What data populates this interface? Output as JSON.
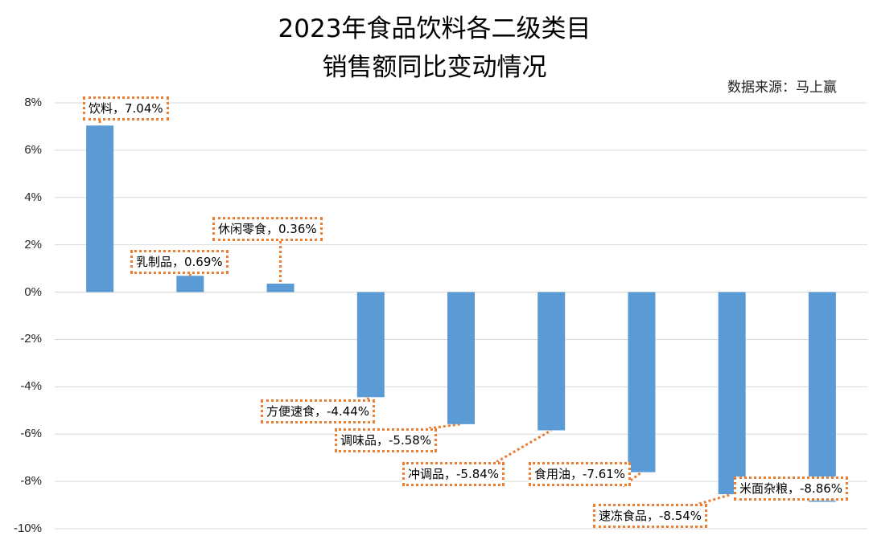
{
  "chart_data": {
    "type": "bar",
    "title": [
      "2023年食品饮料各二级类目",
      "销售额同比变动情况"
    ],
    "source": "数据来源：马上赢",
    "categories": [
      "饮料",
      "乳制品",
      "休闲零食",
      "方便速食",
      "调味品",
      "冲调品",
      "食用油",
      "速冻食品",
      "米面杂粮"
    ],
    "values": [
      7.04,
      0.69,
      0.36,
      -4.44,
      -5.58,
      -5.84,
      -7.61,
      -8.54,
      -8.86
    ],
    "data_labels": [
      "饮料，7.04%",
      "乳制品，0.69%",
      "休闲零食，0.36%",
      "方便速食，-4.44%",
      "调味品，-5.58%",
      "冲调品，-5.84%",
      "食用油，-7.61%",
      "速冻食品，-8.54%",
      "米面杂粮，-8.86%"
    ],
    "yticks": [
      "8%",
      "6%",
      "4%",
      "2%",
      "0%",
      "-2%",
      "-4%",
      "-6%",
      "-8%",
      "-10%"
    ],
    "ylim": [
      -10,
      8
    ],
    "grid": true,
    "legend": "none",
    "bar_color": "#5B9BD5",
    "label_border_color": "#ED7D31"
  }
}
